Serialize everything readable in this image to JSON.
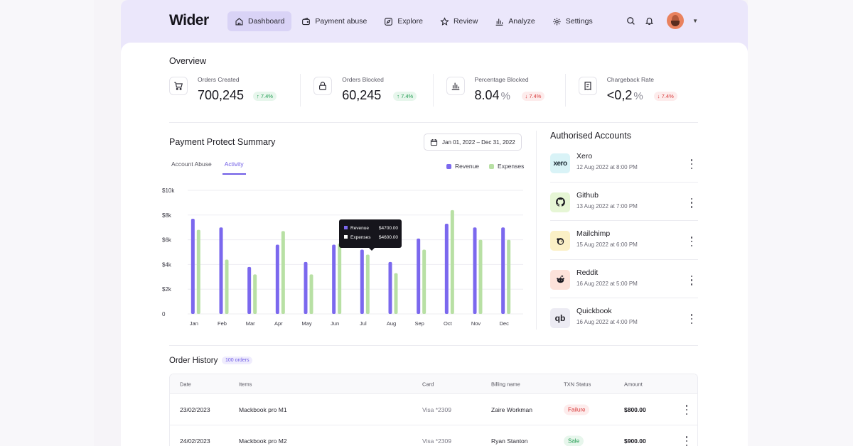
{
  "brand": "Wider",
  "nav": [
    {
      "label": "Dashboard",
      "icon": "home-icon",
      "active": true
    },
    {
      "label": "Payment abuse",
      "icon": "wallet-icon",
      "active": false
    },
    {
      "label": "Explore",
      "icon": "compass-icon",
      "active": false
    },
    {
      "label": "Review",
      "icon": "star-icon",
      "active": false
    },
    {
      "label": "Analyze",
      "icon": "bar-chart-icon",
      "active": false
    },
    {
      "label": "Settings",
      "icon": "gear-icon",
      "active": false
    }
  ],
  "overview": {
    "title": "Overview",
    "stats": [
      {
        "label": "Orders Created",
        "value": "700,245",
        "unit": "",
        "change": "7.4%",
        "trend": "up",
        "icon": "cart-icon"
      },
      {
        "label": "Orders Blocked",
        "value": "60,245",
        "unit": "",
        "change": "7.4%",
        "trend": "up",
        "icon": "lock-icon"
      },
      {
        "label": "Percentage Blocked",
        "value": "8.04",
        "unit": "%",
        "change": "7.4%",
        "trend": "down",
        "icon": "bar-chart-icon"
      },
      {
        "label": "Chargeback Rate",
        "value": "<0,2",
        "unit": "%",
        "change": "7.4%",
        "trend": "down",
        "icon": "receipt-icon"
      }
    ]
  },
  "summary": {
    "title": "Payment Protect Summary",
    "date_range": "Jan 01, 2022 – Dec 31, 2022",
    "tabs": [
      {
        "label": "Account Abuse",
        "active": false
      },
      {
        "label": "Activity",
        "active": true
      }
    ],
    "legend": [
      {
        "label": "Revenue",
        "color": "#7b68ee"
      },
      {
        "label": "Expenses",
        "color": "#b8e0a4"
      }
    ],
    "tooltip": {
      "rows": [
        {
          "label": "Revenue",
          "value": "$4700.00",
          "color": "#7b68ee"
        },
        {
          "label": "Expenses",
          "value": "$4600.00",
          "color": "#ffffff"
        }
      ]
    }
  },
  "chart_data": {
    "type": "bar",
    "categories": [
      "Jan",
      "Feb",
      "Mar",
      "Apr",
      "May",
      "Jun",
      "Jul",
      "Aug",
      "Sep",
      "Oct",
      "Nov",
      "Dec"
    ],
    "series": [
      {
        "name": "Revenue",
        "color": "#7b68ee",
        "values": [
          7700,
          7000,
          3800,
          5600,
          4200,
          5600,
          5200,
          4200,
          6100,
          7300,
          7000,
          7000
        ]
      },
      {
        "name": "Expenses",
        "color": "#b8e0a4",
        "values": [
          6800,
          4400,
          3200,
          6700,
          3200,
          5700,
          4800,
          3300,
          5200,
          8400,
          6000,
          6000
        ]
      }
    ],
    "y_ticks": [
      "0",
      "$2k",
      "$4k",
      "$6k",
      "$8k",
      "$10k"
    ],
    "ylim": [
      0,
      10000
    ],
    "grid": true,
    "legend": "top-right"
  },
  "accounts": {
    "title": "Authorised Accounts",
    "items": [
      {
        "name": "Xero",
        "date": "12 Aug 2022 at 8:00 PM",
        "logo": "xero",
        "logo_text": "xero",
        "bg": "#d9f3f7",
        "fg": "#1b2a33"
      },
      {
        "name": "Github",
        "date": "13 Aug 2022 at 7:00 PM",
        "logo": "github-icon",
        "logo_text": "",
        "bg": "#e6f6d5",
        "fg": "#1c1b22"
      },
      {
        "name": "Mailchimp",
        "date": "15 Aug 2022 at 6:00 PM",
        "logo": "mailchimp-icon",
        "logo_text": "",
        "bg": "#fbf0c6",
        "fg": "#1c1b22"
      },
      {
        "name": "Reddit",
        "date": "16 Aug 2022 at 5:00 PM",
        "logo": "reddit-icon",
        "logo_text": "",
        "bg": "#fde2da",
        "fg": "#1c1b22"
      },
      {
        "name": "Quickbook",
        "date": "16 Aug 2022 at 4:00 PM",
        "logo": "quickbooks-icon",
        "logo_text": "qb",
        "bg": "#ecebf3",
        "fg": "#1c1b22"
      }
    ]
  },
  "orders": {
    "title": "Order History",
    "badge": "100 orders",
    "columns": [
      "Date",
      "Items",
      "Card",
      "Billing name",
      "TXN Status",
      "Amount"
    ],
    "rows": [
      {
        "date": "23/02/2023",
        "item": "Mackbook pro M1",
        "card": "Visa *2309",
        "billing": "Zaire Workman",
        "status": "Failure",
        "status_type": "failure",
        "amount": "$800.00"
      },
      {
        "date": "24/02/2023",
        "item": "Mackbook pro M2",
        "card": "Visa *2309",
        "billing": "Ryan Stanton",
        "status": "Sale",
        "status_type": "sale",
        "amount": "$900.00"
      }
    ]
  }
}
